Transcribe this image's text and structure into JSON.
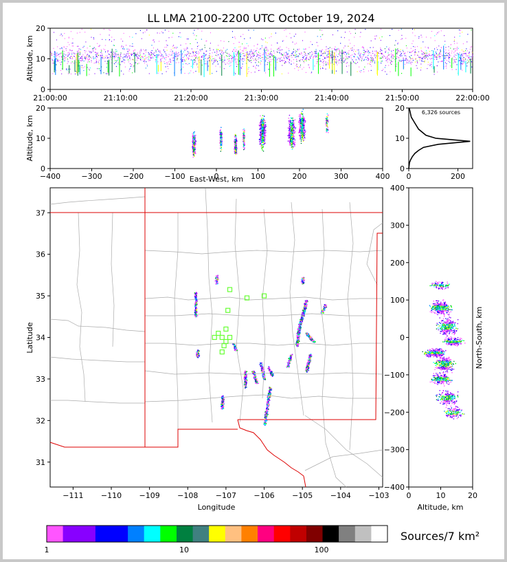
{
  "title": "LL LMA 2100-2200 UTC October 19, 2024",
  "chart_data": [
    {
      "type": "scatter",
      "panel": "time-altitude",
      "xlabel": "",
      "ylabel": "Altitude, km",
      "xlim": [
        "21:00:00",
        "22:00:00"
      ],
      "xticks": [
        "21:00:00",
        "21:10:00",
        "21:20:00",
        "21:30:00",
        "21:40:00",
        "21:50:00",
        "22:00:00"
      ],
      "ylim": [
        0,
        20
      ],
      "yticks": [
        "0",
        "10",
        "20"
      ]
    },
    {
      "type": "scatter",
      "panel": "east-west-altitude",
      "xlabel": "East-West, km",
      "ylabel": "Altitude, km",
      "xlim": [
        -400,
        400
      ],
      "xticks": [
        "−400",
        "−300",
        "−200",
        "−100",
        "0",
        "100",
        "200",
        "300",
        "400"
      ],
      "ylim": [
        0,
        20
      ],
      "yticks": [
        "0",
        "10",
        "20"
      ],
      "clusters_x_km": [
        -55,
        10,
        45,
        65,
        110,
        180,
        205
      ]
    },
    {
      "type": "line",
      "panel": "altitude-histogram",
      "annotation": "6,326 sources",
      "xticks": [
        "0",
        "200"
      ],
      "yticks": [
        "0",
        "10",
        "20"
      ],
      "xlim": [
        0,
        260
      ],
      "ylim": [
        0,
        20
      ],
      "x": [
        0,
        3,
        8,
        15,
        25,
        40,
        60,
        120,
        250,
        110,
        70,
        40,
        25,
        10,
        2
      ],
      "y": [
        0,
        2,
        3,
        4,
        5,
        6,
        7,
        8,
        9,
        10,
        11,
        13,
        15,
        17,
        20
      ]
    },
    {
      "type": "scatter",
      "panel": "plan-view-map",
      "xlabel": "Longitude",
      "ylabel": "Latitude",
      "xlim": [
        -111.6,
        -102.9
      ],
      "ylim": [
        30.4,
        37.6
      ],
      "xticks": [
        "−111",
        "−110",
        "−109",
        "−108",
        "−107",
        "−106",
        "−105",
        "−104",
        "−103"
      ],
      "yticks": [
        "31",
        "32",
        "33",
        "34",
        "35",
        "36",
        "37"
      ],
      "stations": [
        [
          -106.9,
          35.15
        ],
        [
          -106.45,
          34.95
        ],
        [
          -106.0,
          35.0
        ],
        [
          -106.95,
          34.65
        ],
        [
          -107.1,
          34.0
        ],
        [
          -107.0,
          34.2
        ],
        [
          -107.2,
          34.1
        ],
        [
          -107.3,
          34.0
        ],
        [
          -107.0,
          33.9
        ],
        [
          -106.9,
          34.0
        ],
        [
          -107.05,
          33.8
        ],
        [
          -107.1,
          33.65
        ]
      ]
    },
    {
      "type": "scatter",
      "panel": "altitude-north-south",
      "xlabel": "Altitude, km",
      "ylabel": "North-South, km",
      "xlim": [
        0,
        20
      ],
      "xticks": [
        "0",
        "10",
        "20"
      ],
      "ylim": [
        -400,
        400
      ],
      "yticks": [
        "−400",
        "−300",
        "−200",
        "−100",
        "0",
        "100",
        "200",
        "300",
        "400"
      ]
    }
  ],
  "colorbar": {
    "label": "Sources/7 km²",
    "ticks": [
      "1",
      "10",
      "100"
    ],
    "colors": [
      "#ff55ff",
      "#8800ff",
      "#8800ff",
      "#0000ff",
      "#0000ff",
      "#0080ff",
      "#00ffff",
      "#00ff00",
      "#008040",
      "#408080",
      "#ffff00",
      "#ffc080",
      "#ff8000",
      "#ff0080",
      "#ff0000",
      "#c00000",
      "#800000",
      "#000000",
      "#808080",
      "#c0c0c0",
      "#ffffff"
    ]
  },
  "palette": {
    "frame": "#c8c8c8",
    "state": "#dd0000",
    "county": "#aaaaaa",
    "station": "#66ff33"
  }
}
